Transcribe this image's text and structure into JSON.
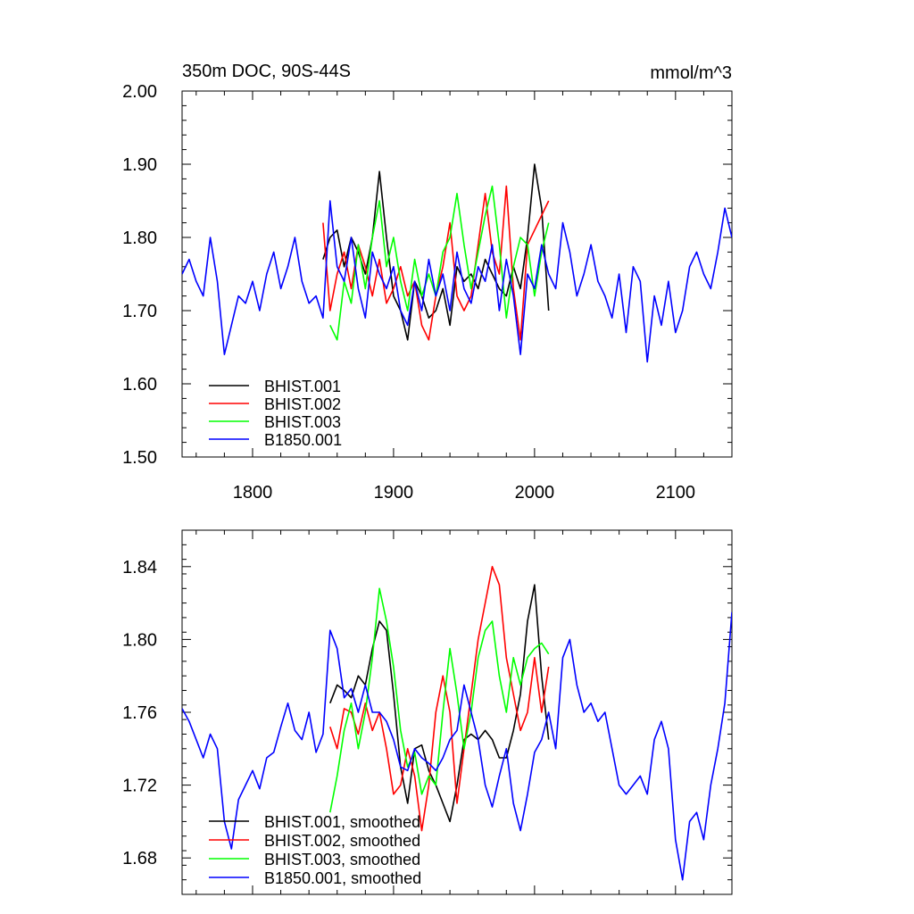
{
  "chart_data": [
    {
      "type": "line",
      "title": "350m DOC, 90S-44S",
      "units": "mmol/m^3",
      "xlim": [
        1750,
        2140
      ],
      "ylim": [
        1.5,
        2.0
      ],
      "xticks": [
        1800,
        1900,
        2000,
        2100
      ],
      "xtick_labels": [
        "1800",
        "1900",
        "2000",
        "2100"
      ],
      "yticks": [
        1.5,
        1.6,
        1.7,
        1.8,
        1.9,
        2.0
      ],
      "ytick_labels": [
        "1.50",
        "1.60",
        "1.70",
        "1.80",
        "1.90",
        "2.00"
      ],
      "legend_position": "bottom-left",
      "series": [
        {
          "name": "BHIST.001",
          "color": "#000000",
          "x": [
            1850,
            1855,
            1860,
            1865,
            1870,
            1875,
            1880,
            1885,
            1890,
            1895,
            1900,
            1905,
            1910,
            1915,
            1920,
            1925,
            1930,
            1935,
            1940,
            1945,
            1950,
            1955,
            1960,
            1965,
            1970,
            1975,
            1980,
            1985,
            1990,
            1995,
            2000,
            2005,
            2010
          ],
          "values": [
            1.77,
            1.8,
            1.81,
            1.76,
            1.8,
            1.78,
            1.75,
            1.8,
            1.89,
            1.8,
            1.72,
            1.7,
            1.66,
            1.74,
            1.72,
            1.69,
            1.7,
            1.73,
            1.68,
            1.76,
            1.74,
            1.75,
            1.73,
            1.77,
            1.75,
            1.73,
            1.72,
            1.76,
            1.73,
            1.8,
            1.9,
            1.84,
            1.7
          ]
        },
        {
          "name": "BHIST.002",
          "color": "#ff0000",
          "x": [
            1850,
            1855,
            1860,
            1865,
            1870,
            1875,
            1880,
            1885,
            1890,
            1895,
            1900,
            1905,
            1910,
            1915,
            1920,
            1925,
            1930,
            1935,
            1940,
            1945,
            1950,
            1955,
            1960,
            1965,
            1970,
            1975,
            1980,
            1985,
            1990,
            1995,
            2000,
            2005,
            2010
          ],
          "values": [
            1.82,
            1.7,
            1.75,
            1.78,
            1.73,
            1.79,
            1.76,
            1.72,
            1.77,
            1.71,
            1.73,
            1.76,
            1.72,
            1.74,
            1.68,
            1.66,
            1.72,
            1.76,
            1.82,
            1.72,
            1.7,
            1.72,
            1.79,
            1.86,
            1.78,
            1.75,
            1.87,
            1.73,
            1.66,
            1.79,
            1.81,
            1.83,
            1.85
          ]
        },
        {
          "name": "BHIST.003",
          "color": "#00ff00",
          "x": [
            1855,
            1860,
            1865,
            1870,
            1875,
            1880,
            1885,
            1890,
            1895,
            1900,
            1905,
            1910,
            1915,
            1920,
            1925,
            1930,
            1935,
            1940,
            1945,
            1950,
            1955,
            1960,
            1965,
            1970,
            1975,
            1980,
            1985,
            1990,
            1995,
            2000,
            2005,
            2010
          ],
          "values": [
            1.68,
            1.66,
            1.74,
            1.71,
            1.79,
            1.73,
            1.8,
            1.85,
            1.76,
            1.8,
            1.74,
            1.7,
            1.77,
            1.72,
            1.75,
            1.72,
            1.78,
            1.8,
            1.86,
            1.79,
            1.73,
            1.78,
            1.83,
            1.87,
            1.79,
            1.69,
            1.76,
            1.8,
            1.79,
            1.72,
            1.78,
            1.82
          ]
        },
        {
          "name": "B1850.001",
          "color": "#0000ff",
          "x": [
            1750,
            1755,
            1760,
            1765,
            1770,
            1775,
            1780,
            1785,
            1790,
            1795,
            1800,
            1805,
            1810,
            1815,
            1820,
            1825,
            1830,
            1835,
            1840,
            1845,
            1850,
            1855,
            1860,
            1865,
            1870,
            1875,
            1880,
            1885,
            1890,
            1895,
            1900,
            1905,
            1910,
            1915,
            1920,
            1925,
            1930,
            1935,
            1940,
            1945,
            1950,
            1955,
            1960,
            1965,
            1970,
            1975,
            1980,
            1985,
            1990,
            1995,
            2000,
            2005,
            2010,
            2015,
            2020,
            2025,
            2030,
            2035,
            2040,
            2045,
            2050,
            2055,
            2060,
            2065,
            2070,
            2075,
            2080,
            2085,
            2090,
            2095,
            2100,
            2105,
            2110,
            2115,
            2120,
            2125,
            2130,
            2135,
            2140
          ],
          "values": [
            1.75,
            1.77,
            1.74,
            1.72,
            1.8,
            1.74,
            1.64,
            1.68,
            1.72,
            1.71,
            1.74,
            1.7,
            1.75,
            1.78,
            1.73,
            1.76,
            1.8,
            1.74,
            1.71,
            1.72,
            1.69,
            1.85,
            1.76,
            1.74,
            1.8,
            1.73,
            1.69,
            1.78,
            1.75,
            1.73,
            1.76,
            1.7,
            1.68,
            1.74,
            1.7,
            1.77,
            1.72,
            1.75,
            1.7,
            1.78,
            1.73,
            1.71,
            1.76,
            1.74,
            1.79,
            1.7,
            1.77,
            1.72,
            1.64,
            1.75,
            1.73,
            1.79,
            1.75,
            1.73,
            1.82,
            1.78,
            1.72,
            1.75,
            1.79,
            1.74,
            1.72,
            1.69,
            1.75,
            1.67,
            1.76,
            1.74,
            1.63,
            1.72,
            1.68,
            1.74,
            1.67,
            1.7,
            1.76,
            1.78,
            1.75,
            1.73,
            1.78,
            1.84,
            1.8
          ]
        }
      ],
      "legend": [
        "BHIST.001",
        "BHIST.002",
        "BHIST.003",
        "B1850.001"
      ]
    },
    {
      "type": "line",
      "title": "",
      "xlim": [
        1750,
        2140
      ],
      "ylim": [
        1.66,
        1.86
      ],
      "xticks": [
        1800,
        1900,
        2000,
        2100
      ],
      "yticks": [
        1.68,
        1.72,
        1.76,
        1.8,
        1.84
      ],
      "ytick_labels": [
        "1.68",
        "1.72",
        "1.76",
        "1.80",
        "1.84"
      ],
      "legend_position": "bottom-left",
      "series": [
        {
          "name": "BHIST.001, smoothed",
          "color": "#000000",
          "x": [
            1855,
            1860,
            1865,
            1870,
            1875,
            1880,
            1885,
            1890,
            1895,
            1900,
            1905,
            1910,
            1915,
            1920,
            1925,
            1930,
            1935,
            1940,
            1945,
            1950,
            1955,
            1960,
            1965,
            1970,
            1975,
            1980,
            1985,
            1990,
            1995,
            2000,
            2005,
            2010
          ],
          "values": [
            1.765,
            1.775,
            1.772,
            1.768,
            1.78,
            1.775,
            1.795,
            1.81,
            1.805,
            1.77,
            1.73,
            1.71,
            1.74,
            1.742,
            1.728,
            1.72,
            1.71,
            1.7,
            1.72,
            1.745,
            1.748,
            1.745,
            1.75,
            1.745,
            1.735,
            1.735,
            1.75,
            1.77,
            1.81,
            1.83,
            1.78,
            1.745
          ]
        },
        {
          "name": "BHIST.002, smoothed",
          "color": "#ff0000",
          "x": [
            1855,
            1860,
            1865,
            1870,
            1875,
            1880,
            1885,
            1890,
            1895,
            1900,
            1905,
            1910,
            1915,
            1920,
            1925,
            1930,
            1935,
            1940,
            1945,
            1950,
            1955,
            1960,
            1965,
            1970,
            1975,
            1980,
            1985,
            1990,
            1995,
            2000,
            2005,
            2010
          ],
          "values": [
            1.752,
            1.74,
            1.762,
            1.76,
            1.748,
            1.765,
            1.75,
            1.76,
            1.74,
            1.715,
            1.72,
            1.74,
            1.725,
            1.695,
            1.72,
            1.76,
            1.78,
            1.76,
            1.71,
            1.74,
            1.77,
            1.8,
            1.82,
            1.84,
            1.83,
            1.79,
            1.77,
            1.75,
            1.76,
            1.79,
            1.76,
            1.785
          ]
        },
        {
          "name": "BHIST.003, smoothed",
          "color": "#00ff00",
          "x": [
            1855,
            1860,
            1865,
            1870,
            1875,
            1880,
            1885,
            1890,
            1895,
            1900,
            1905,
            1910,
            1915,
            1920,
            1925,
            1930,
            1935,
            1940,
            1945,
            1950,
            1955,
            1960,
            1965,
            1970,
            1975,
            1980,
            1985,
            1990,
            1995,
            2000,
            2005,
            2010
          ],
          "values": [
            1.705,
            1.725,
            1.75,
            1.765,
            1.74,
            1.76,
            1.79,
            1.828,
            1.81,
            1.785,
            1.75,
            1.73,
            1.738,
            1.715,
            1.725,
            1.72,
            1.76,
            1.795,
            1.77,
            1.74,
            1.76,
            1.79,
            1.805,
            1.81,
            1.78,
            1.76,
            1.79,
            1.775,
            1.79,
            1.795,
            1.798,
            1.792
          ]
        },
        {
          "name": "B1850.001, smoothed",
          "color": "#0000ff",
          "x": [
            1750,
            1755,
            1760,
            1765,
            1770,
            1775,
            1780,
            1785,
            1790,
            1795,
            1800,
            1805,
            1810,
            1815,
            1820,
            1825,
            1830,
            1835,
            1840,
            1845,
            1850,
            1855,
            1860,
            1865,
            1870,
            1875,
            1880,
            1885,
            1890,
            1895,
            1900,
            1905,
            1910,
            1915,
            1920,
            1925,
            1930,
            1935,
            1940,
            1945,
            1950,
            1955,
            1960,
            1965,
            1970,
            1975,
            1980,
            1985,
            1990,
            1995,
            2000,
            2005,
            2010,
            2015,
            2020,
            2025,
            2030,
            2035,
            2040,
            2045,
            2050,
            2055,
            2060,
            2065,
            2070,
            2075,
            2080,
            2085,
            2090,
            2095,
            2100,
            2105,
            2110,
            2115,
            2120,
            2125,
            2130,
            2135,
            2140
          ],
          "values": [
            1.762,
            1.755,
            1.745,
            1.735,
            1.748,
            1.74,
            1.7,
            1.685,
            1.712,
            1.72,
            1.728,
            1.718,
            1.735,
            1.738,
            1.752,
            1.765,
            1.75,
            1.745,
            1.76,
            1.738,
            1.748,
            1.805,
            1.795,
            1.768,
            1.773,
            1.76,
            1.775,
            1.76,
            1.76,
            1.755,
            1.745,
            1.73,
            1.728,
            1.74,
            1.735,
            1.732,
            1.728,
            1.735,
            1.745,
            1.75,
            1.775,
            1.76,
            1.745,
            1.72,
            1.708,
            1.725,
            1.74,
            1.71,
            1.695,
            1.715,
            1.738,
            1.745,
            1.76,
            1.74,
            1.79,
            1.8,
            1.775,
            1.76,
            1.765,
            1.755,
            1.76,
            1.74,
            1.72,
            1.715,
            1.72,
            1.725,
            1.715,
            1.745,
            1.755,
            1.74,
            1.69,
            1.668,
            1.7,
            1.705,
            1.69,
            1.72,
            1.74,
            1.765,
            1.815
          ]
        }
      ],
      "legend": [
        "BHIST.001, smoothed",
        "BHIST.002, smoothed",
        "BHIST.003, smoothed",
        "B1850.001, smoothed"
      ]
    }
  ]
}
